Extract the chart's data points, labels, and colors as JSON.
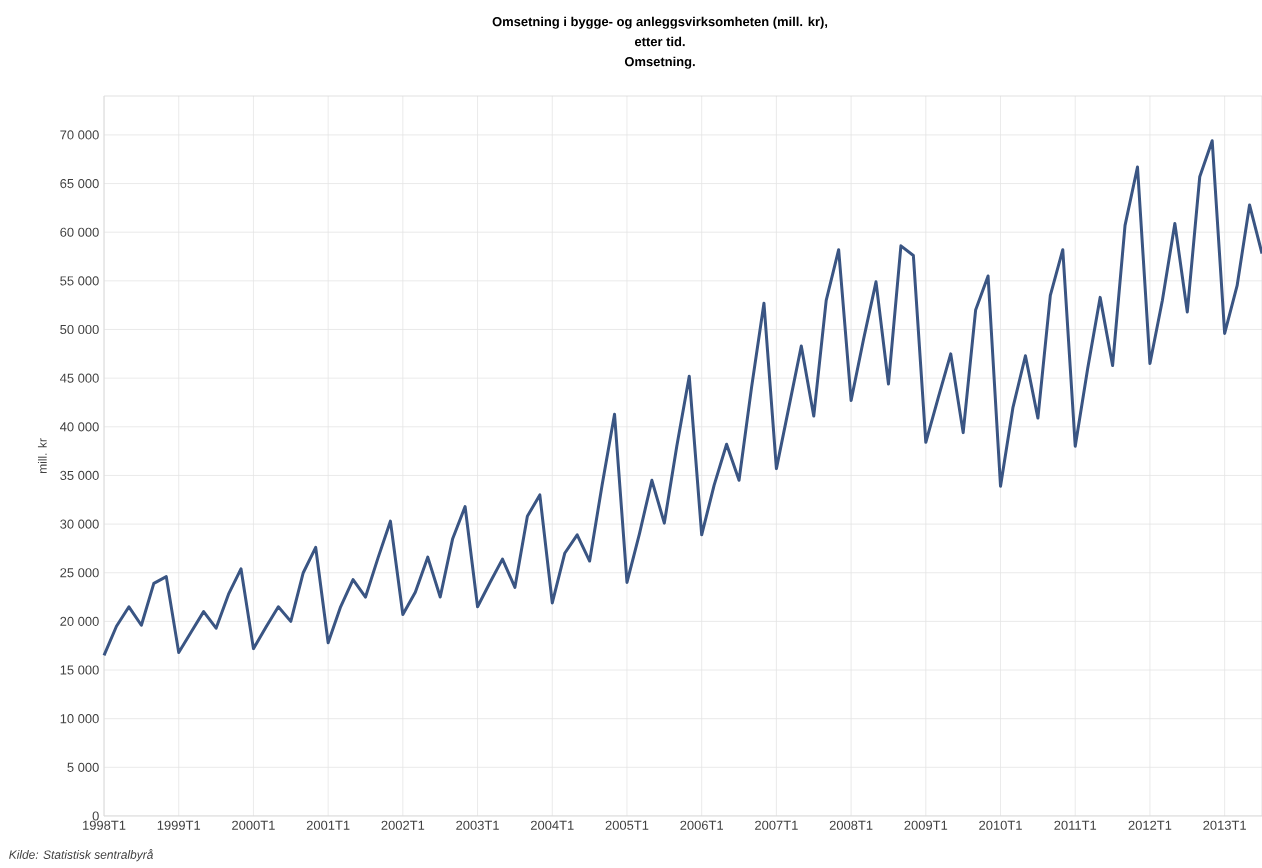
{
  "chart_data": {
    "type": "line",
    "title": "Omsetning i bygge- og anleggsvirksomheten (mill. kr),",
    "subtitle": "etter tid.",
    "ylabel": "mill. kr",
    "annotations": [
      "Omsetning.",
      "*Kilde: Statistisk sentralbyrå*"
    ],
    "categories": [
      "1998T1",
      null,
      null,
      null,
      null,
      null,
      "1999T1",
      null,
      null,
      null,
      null,
      null,
      "2000T1",
      null,
      null,
      null,
      null,
      null,
      "2001T1",
      null,
      null,
      null,
      null,
      null,
      "2002T1",
      null,
      null,
      null,
      null,
      null,
      "2003T1",
      null,
      null,
      null,
      null,
      null,
      "2004T1",
      null,
      null,
      null,
      null,
      null,
      "2005T1",
      null,
      null,
      null,
      null,
      null,
      "2006T1",
      null,
      null,
      null,
      null,
      null,
      "2007T1",
      null,
      null,
      null,
      null,
      null,
      "2008T1",
      null,
      null,
      null,
      null,
      null,
      "2009T1",
      null,
      null,
      null,
      null,
      null,
      "2010T1",
      null,
      null,
      null,
      null,
      null,
      "2011T1",
      null,
      null,
      null,
      null,
      null,
      "2012T1",
      null,
      null,
      null,
      null,
      null,
      "2013T1",
      null,
      null,
      null
    ],
    "series": [
      {
        "color": "#3a5583",
        "values": [
          16500,
          19500,
          21500,
          19600,
          23900,
          24600,
          16800,
          18900,
          21000,
          19300,
          22800,
          25400,
          17200,
          19400,
          21500,
          20000,
          25000,
          27600,
          17800,
          21500,
          24300,
          22500,
          26500,
          30300,
          20700,
          23000,
          26600,
          22500,
          28500,
          31800,
          21500,
          24000,
          26400,
          23500,
          30800,
          33000,
          21900,
          27000,
          28900,
          26200,
          34000,
          41300,
          24000,
          29000,
          34500,
          30100,
          38000,
          45200,
          28900,
          34000,
          38200,
          34500,
          44000,
          52700,
          35700,
          42000,
          48300,
          41100,
          53000,
          58200,
          42700,
          49000,
          54900,
          44400,
          58600,
          57600,
          38400,
          43000,
          47500,
          39400,
          52000,
          55500,
          33900,
          42000,
          47300,
          40900,
          53500,
          58200,
          38000,
          46000,
          53300,
          46300,
          60700,
          66700,
          46500,
          53000,
          60900,
          51800,
          65700,
          69400,
          49600,
          54500,
          62800,
          57800
        ]
      }
    ],
    "ylim": [
      0,
      74000
    ],
    "yticks": [
      0,
      {
        "value": 5000,
        "label": "5 000"
      },
      {
        "value": 10000,
        "label": "10 000"
      },
      {
        "value": 15000,
        "label": "15 000"
      },
      {
        "value": 20000,
        "label": "20 000"
      },
      {
        "value": 25000,
        "label": "25 000"
      },
      {
        "value": 30000,
        "label": "30 000"
      },
      {
        "value": 35000,
        "label": "35 000"
      },
      {
        "value": 40000,
        "label": "40 000"
      },
      {
        "value": 45000,
        "label": "45 000"
      },
      {
        "value": 50000,
        "label": "50 000"
      },
      {
        "value": 55000,
        "label": "55 000"
      },
      {
        "value": 60000,
        "label": "60 000"
      },
      {
        "value": 65000,
        "label": "65 000"
      },
      {
        "value": 70000,
        "label": "70 000"
      }
    ],
    "grid": true,
    "marker": "none",
    "line_style": "solid"
  }
}
